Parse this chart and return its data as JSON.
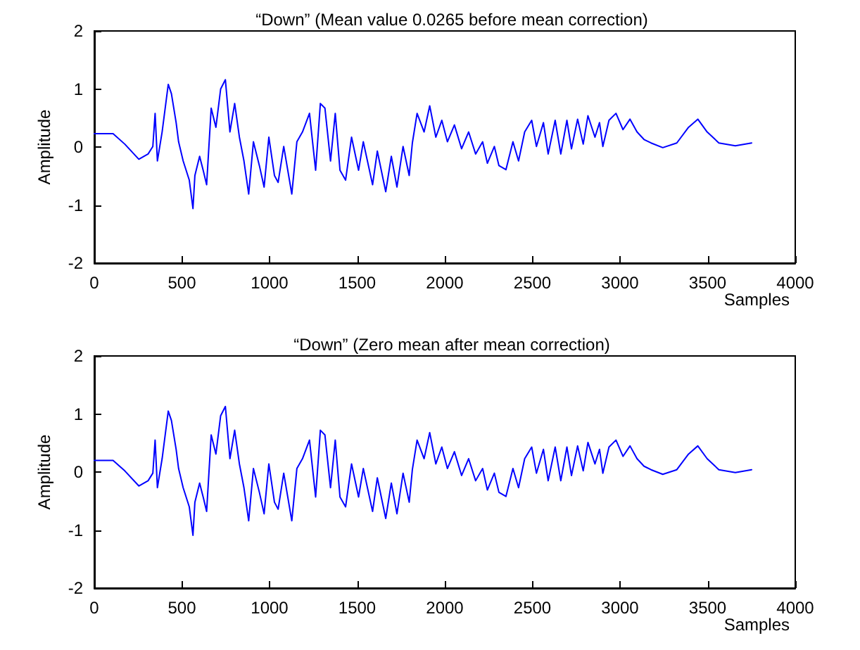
{
  "chart_data": [
    {
      "type": "line",
      "title": "“Down” (Mean value 0.0265 before mean correction)",
      "xlabel": "Samples",
      "ylabel": "Amplitude",
      "xlim": [
        0,
        4000
      ],
      "xticks": [
        0,
        500,
        1000,
        1500,
        2000,
        2500,
        3000,
        3500,
        4000
      ],
      "ylim": [
        -2,
        2
      ],
      "yticks": [
        -2,
        -1,
        0,
        1,
        2
      ],
      "grid": false,
      "marker": "none",
      "line_style": "solid",
      "x": [
        0,
        107,
        174,
        254,
        307,
        334,
        347,
        360,
        387,
        422,
        440,
        467,
        481,
        507,
        542,
        563,
        574,
        601,
        622,
        641,
        667,
        694,
        721,
        748,
        774,
        801,
        828,
        854,
        881,
        908,
        942,
        969,
        996,
        1028,
        1049,
        1081,
        1127,
        1156,
        1188,
        1228,
        1263,
        1290,
        1316,
        1348,
        1375,
        1402,
        1434,
        1468,
        1508,
        1535,
        1588,
        1615,
        1663,
        1695,
        1727,
        1762,
        1797,
        1815,
        1842,
        1882,
        1914,
        1949,
        1983,
        2015,
        2055,
        2096,
        2136,
        2176,
        2216,
        2243,
        2283,
        2309,
        2349,
        2389,
        2421,
        2456,
        2496,
        2523,
        2563,
        2590,
        2630,
        2662,
        2697,
        2723,
        2758,
        2790,
        2817,
        2857,
        2883,
        2902,
        2937,
        2977,
        3017,
        3057,
        3097,
        3137,
        3177,
        3244,
        3324,
        3391,
        3444,
        3497,
        3564,
        3658,
        3751
      ],
      "series": [
        {
          "color": "#0000ff",
          "values": [
            0.23,
            0.23,
            0.05,
            -0.21,
            -0.12,
            0.01,
            0.58,
            -0.24,
            0.26,
            1.08,
            0.92,
            0.42,
            0.09,
            -0.24,
            -0.57,
            -1.06,
            -0.49,
            -0.16,
            -0.41,
            -0.65,
            0.67,
            0.34,
            1.0,
            1.16,
            0.26,
            0.75,
            0.17,
            -0.24,
            -0.81,
            0.09,
            -0.32,
            -0.69,
            0.17,
            -0.49,
            -0.61,
            0.01,
            -0.81,
            0.09,
            0.26,
            0.58,
            -0.4,
            0.75,
            0.67,
            -0.24,
            0.58,
            -0.4,
            -0.57,
            0.17,
            -0.4,
            0.09,
            -0.65,
            -0.07,
            -0.77,
            -0.16,
            -0.69,
            0.01,
            -0.49,
            0.07,
            0.58,
            0.26,
            0.71,
            0.17,
            0.46,
            0.09,
            0.38,
            -0.03,
            0.26,
            -0.12,
            0.09,
            -0.28,
            0.01,
            -0.32,
            -0.39,
            0.09,
            -0.24,
            0.26,
            0.46,
            0.01,
            0.42,
            -0.12,
            0.46,
            -0.12,
            0.46,
            -0.03,
            0.48,
            0.05,
            0.54,
            0.17,
            0.42,
            0.01,
            0.46,
            0.58,
            0.3,
            0.48,
            0.26,
            0.13,
            0.07,
            -0.01,
            0.07,
            0.34,
            0.48,
            0.26,
            0.07,
            0.02,
            0.07
          ]
        }
      ]
    },
    {
      "type": "line",
      "title": "“Down” (Zero mean after mean correction)",
      "xlabel": "Samples",
      "ylabel": "Amplitude",
      "xlim": [
        0,
        4000
      ],
      "xticks": [
        0,
        500,
        1000,
        1500,
        2000,
        2500,
        3000,
        3500,
        4000
      ],
      "ylim": [
        -2,
        2
      ],
      "yticks": [
        -2,
        -1,
        0,
        1,
        2
      ],
      "grid": false,
      "marker": "none",
      "line_style": "solid",
      "x": [
        0,
        107,
        174,
        254,
        307,
        334,
        347,
        360,
        387,
        422,
        440,
        467,
        481,
        507,
        542,
        563,
        574,
        601,
        622,
        641,
        667,
        694,
        721,
        748,
        774,
        801,
        828,
        854,
        881,
        908,
        942,
        969,
        996,
        1028,
        1049,
        1081,
        1127,
        1156,
        1188,
        1228,
        1263,
        1290,
        1316,
        1348,
        1375,
        1402,
        1434,
        1468,
        1508,
        1535,
        1588,
        1615,
        1663,
        1695,
        1727,
        1762,
        1797,
        1815,
        1842,
        1882,
        1914,
        1949,
        1983,
        2015,
        2055,
        2096,
        2136,
        2176,
        2216,
        2243,
        2283,
        2309,
        2349,
        2389,
        2421,
        2456,
        2496,
        2523,
        2563,
        2590,
        2630,
        2662,
        2697,
        2723,
        2758,
        2790,
        2817,
        2857,
        2883,
        2902,
        2937,
        2977,
        3017,
        3057,
        3097,
        3137,
        3177,
        3244,
        3324,
        3391,
        3444,
        3497,
        3564,
        3658,
        3751
      ],
      "series": [
        {
          "color": "#0000ff",
          "values": [
            0.2,
            0.2,
            0.02,
            -0.24,
            -0.15,
            -0.02,
            0.55,
            -0.27,
            0.23,
            1.05,
            0.89,
            0.39,
            0.06,
            -0.27,
            -0.6,
            -1.09,
            -0.52,
            -0.19,
            -0.44,
            -0.68,
            0.64,
            0.31,
            0.97,
            1.13,
            0.23,
            0.72,
            0.14,
            -0.27,
            -0.84,
            0.06,
            -0.35,
            -0.72,
            0.14,
            -0.52,
            -0.64,
            -0.02,
            -0.84,
            0.06,
            0.23,
            0.55,
            -0.43,
            0.72,
            0.64,
            -0.27,
            0.55,
            -0.43,
            -0.6,
            0.14,
            -0.43,
            0.06,
            -0.68,
            -0.1,
            -0.8,
            -0.19,
            -0.72,
            -0.02,
            -0.52,
            0.04,
            0.55,
            0.23,
            0.68,
            0.14,
            0.43,
            0.06,
            0.35,
            -0.06,
            0.23,
            -0.15,
            0.06,
            -0.31,
            -0.02,
            -0.35,
            -0.42,
            0.06,
            -0.27,
            0.23,
            0.43,
            -0.02,
            0.39,
            -0.15,
            0.43,
            -0.15,
            0.43,
            -0.06,
            0.45,
            0.02,
            0.51,
            0.14,
            0.39,
            -0.02,
            0.43,
            0.55,
            0.27,
            0.45,
            0.23,
            0.1,
            0.04,
            -0.04,
            0.04,
            0.31,
            0.45,
            0.23,
            0.04,
            -0.01,
            0.04
          ]
        }
      ]
    }
  ]
}
